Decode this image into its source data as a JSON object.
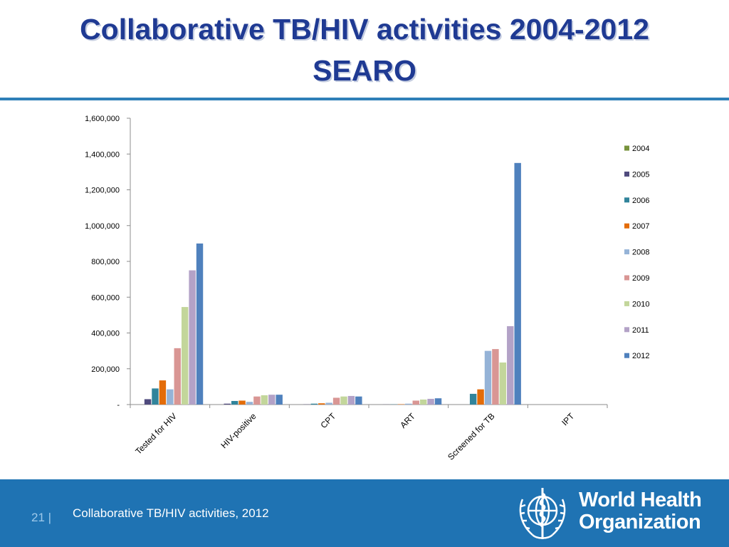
{
  "slide": {
    "title_line1": "Collaborative TB/HIV activities 2004-2012",
    "title_line2": "SEARO"
  },
  "footer": {
    "page_number": "21",
    "text": "Collaborative TB/HIV activities, 2012",
    "logo_line1": "World Health",
    "logo_line2": "Organization"
  },
  "colors": {
    "title": "#1f3a93",
    "footer_bg": "#1f73b3",
    "rule": "#2f80b8"
  },
  "chart_data": {
    "type": "bar",
    "title": "",
    "xlabel": "",
    "ylabel": "",
    "ylim": [
      0,
      1600000
    ],
    "yticks": [
      0,
      200000,
      400000,
      600000,
      800000,
      1000000,
      1200000,
      1400000,
      1600000
    ],
    "ytick_labels": [
      "-",
      "200,000",
      "400,000",
      "600,000",
      "800,000",
      "1,000,000",
      "1,200,000",
      "1,400,000",
      "1,600,000"
    ],
    "grid": false,
    "legend_position": "right",
    "categories": [
      "Tested for HIV",
      "HIV-positive",
      "CPT",
      "ART",
      "Screened for TB",
      "IPT"
    ],
    "series": [
      {
        "name": "2004",
        "color": "#77933c",
        "values": [
          0,
          0,
          0,
          0,
          0,
          0
        ]
      },
      {
        "name": "2005",
        "color": "#4f4a7d",
        "values": [
          30000,
          5000,
          1000,
          500,
          0,
          0
        ]
      },
      {
        "name": "2006",
        "color": "#31849b",
        "values": [
          90000,
          20000,
          5000,
          1000,
          60000,
          0
        ]
      },
      {
        "name": "2007",
        "color": "#e36c09",
        "values": [
          135000,
          22000,
          7000,
          2000,
          85000,
          0
        ]
      },
      {
        "name": "2008",
        "color": "#95b3d7",
        "values": [
          85000,
          15000,
          10000,
          5000,
          300000,
          0
        ]
      },
      {
        "name": "2009",
        "color": "#d99694",
        "values": [
          315000,
          45000,
          38000,
          22000,
          310000,
          0
        ]
      },
      {
        "name": "2010",
        "color": "#c3d69b",
        "values": [
          545000,
          52000,
          45000,
          28000,
          235000,
          0
        ]
      },
      {
        "name": "2011",
        "color": "#b3a2c7",
        "values": [
          750000,
          55000,
          48000,
          32000,
          438000,
          0
        ]
      },
      {
        "name": "2012",
        "color": "#4f81bd",
        "values": [
          900000,
          55000,
          45000,
          35000,
          1350000,
          0
        ]
      }
    ]
  }
}
